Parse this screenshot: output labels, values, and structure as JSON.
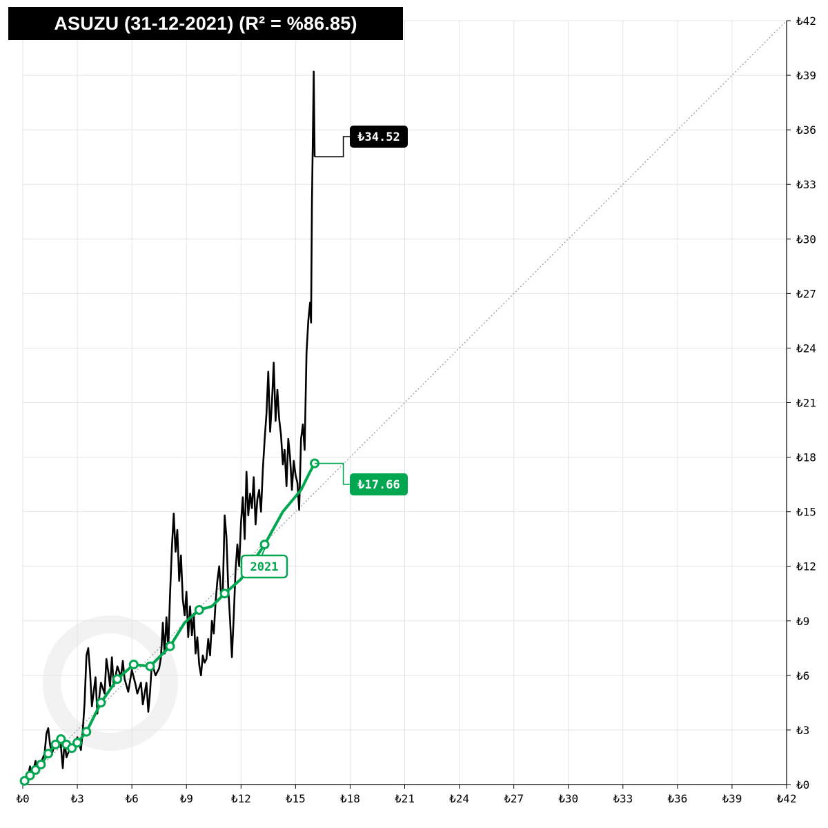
{
  "title": "ASUZU (31-12-2021) (R² = %86.85)",
  "colors": {
    "price": "#000000",
    "trend": "#00a650",
    "grid": "#e4e4e4",
    "diagonal": "#9a9a9a"
  },
  "chart_data": {
    "type": "line",
    "title": "ASUZU (31-12-2021) (R² = %86.85)",
    "xlim": [
      0,
      42
    ],
    "ylim": [
      0,
      42
    ],
    "x_ticks": [
      "₺0",
      "₺3",
      "₺6",
      "₺9",
      "₺12",
      "₺15",
      "₺18",
      "₺21",
      "₺24",
      "₺27",
      "₺30",
      "₺33",
      "₺36",
      "₺39",
      "₺42"
    ],
    "y_ticks": [
      "₺0",
      "₺3",
      "₺6",
      "₺9",
      "₺12",
      "₺15",
      "₺18",
      "₺21",
      "₺24",
      "₺27",
      "₺30",
      "₺33",
      "₺36",
      "₺39",
      "₺42"
    ],
    "grid": true,
    "diagonal_reference": true,
    "series": [
      {
        "color": "#000000",
        "points": [
          [
            0.1,
            0.2
          ],
          [
            0.3,
            0.5
          ],
          [
            0.4,
            1.0
          ],
          [
            0.5,
            0.4
          ],
          [
            0.7,
            1.3
          ],
          [
            0.8,
            0.6
          ],
          [
            1.0,
            1.2
          ],
          [
            1.2,
            1.7
          ],
          [
            1.3,
            2.8
          ],
          [
            1.4,
            3.1
          ],
          [
            1.5,
            2.2
          ],
          [
            1.6,
            1.7
          ],
          [
            1.8,
            2.3
          ],
          [
            2.0,
            2.7
          ],
          [
            2.1,
            2.1
          ],
          [
            2.2,
            0.9
          ],
          [
            2.3,
            2.4
          ],
          [
            2.4,
            1.5
          ],
          [
            2.6,
            2.0
          ],
          [
            2.8,
            1.9
          ],
          [
            3.0,
            2.6
          ],
          [
            3.2,
            1.9
          ],
          [
            3.3,
            3.0
          ],
          [
            3.4,
            4.5
          ],
          [
            3.5,
            7.1
          ],
          [
            3.6,
            7.5
          ],
          [
            3.7,
            6.2
          ],
          [
            3.8,
            4.3
          ],
          [
            4.0,
            5.9
          ],
          [
            4.1,
            3.9
          ],
          [
            4.3,
            5.6
          ],
          [
            4.5,
            5.0
          ],
          [
            4.6,
            6.9
          ],
          [
            4.7,
            6.2
          ],
          [
            4.8,
            5.4
          ],
          [
            4.9,
            7.0
          ],
          [
            5.0,
            5.4
          ],
          [
            5.2,
            6.5
          ],
          [
            5.4,
            5.9
          ],
          [
            5.5,
            6.8
          ],
          [
            5.6,
            5.8
          ],
          [
            5.8,
            5.1
          ],
          [
            6.0,
            6.3
          ],
          [
            6.2,
            5.5
          ],
          [
            6.3,
            5.0
          ],
          [
            6.5,
            5.6
          ],
          [
            6.6,
            4.4
          ],
          [
            6.8,
            5.6
          ],
          [
            6.9,
            4.0
          ],
          [
            7.0,
            5.1
          ],
          [
            7.1,
            6.7
          ],
          [
            7.3,
            6.0
          ],
          [
            7.5,
            6.4
          ],
          [
            7.6,
            7.0
          ],
          [
            7.7,
            8.9
          ],
          [
            7.8,
            7.2
          ],
          [
            7.9,
            9.2
          ],
          [
            8.0,
            7.5
          ],
          [
            8.1,
            10.5
          ],
          [
            8.2,
            13.0
          ],
          [
            8.3,
            14.9
          ],
          [
            8.4,
            12.8
          ],
          [
            8.5,
            14.0
          ],
          [
            8.6,
            11.2
          ],
          [
            8.7,
            12.6
          ],
          [
            8.8,
            10.2
          ],
          [
            8.9,
            9.3
          ],
          [
            9.0,
            10.6
          ],
          [
            9.1,
            8.1
          ],
          [
            9.2,
            9.8
          ],
          [
            9.3,
            8.2
          ],
          [
            9.4,
            9.4
          ],
          [
            9.5,
            7.2
          ],
          [
            9.6,
            8.1
          ],
          [
            9.7,
            6.6
          ],
          [
            9.8,
            6.0
          ],
          [
            9.9,
            7.1
          ],
          [
            10.0,
            6.7
          ],
          [
            10.1,
            6.9
          ],
          [
            10.2,
            8.0
          ],
          [
            10.3,
            7.1
          ],
          [
            10.4,
            9.0
          ],
          [
            10.5,
            8.3
          ],
          [
            10.6,
            10.0
          ],
          [
            10.7,
            11.2
          ],
          [
            10.8,
            12.0
          ],
          [
            10.9,
            10.5
          ],
          [
            11.0,
            10.6
          ],
          [
            11.1,
            14.8
          ],
          [
            11.2,
            13.6
          ],
          [
            11.3,
            10.8
          ],
          [
            11.4,
            9.0
          ],
          [
            11.5,
            7.0
          ],
          [
            11.6,
            9.2
          ],
          [
            11.7,
            11.8
          ],
          [
            11.8,
            13.2
          ],
          [
            11.9,
            12.0
          ],
          [
            12.0,
            14.4
          ],
          [
            12.1,
            15.8
          ],
          [
            12.2,
            13.5
          ],
          [
            12.3,
            17.2
          ],
          [
            12.4,
            14.8
          ],
          [
            12.5,
            16.0
          ],
          [
            12.6,
            15.2
          ],
          [
            12.7,
            16.9
          ],
          [
            12.8,
            14.3
          ],
          [
            12.9,
            15.7
          ],
          [
            13.0,
            16.2
          ],
          [
            13.1,
            15.0
          ],
          [
            13.2,
            17.3
          ],
          [
            13.3,
            19.0
          ],
          [
            13.4,
            20.4
          ],
          [
            13.5,
            22.7
          ],
          [
            13.6,
            19.4
          ],
          [
            13.7,
            21.0
          ],
          [
            13.8,
            23.2
          ],
          [
            13.9,
            20.0
          ],
          [
            14.0,
            21.7
          ],
          [
            14.1,
            20.1
          ],
          [
            14.2,
            19.2
          ],
          [
            14.3,
            17.6
          ],
          [
            14.4,
            18.4
          ],
          [
            14.5,
            16.4
          ],
          [
            14.6,
            19.0
          ],
          [
            14.7,
            18.0
          ],
          [
            14.8,
            16.2
          ],
          [
            14.9,
            17.8
          ],
          [
            15.0,
            17.0
          ],
          [
            15.1,
            16.6
          ],
          [
            15.2,
            15.1
          ],
          [
            15.3,
            19.0
          ],
          [
            15.4,
            19.8
          ],
          [
            15.5,
            18.4
          ],
          [
            15.6,
            23.7
          ],
          [
            15.7,
            25.5
          ],
          [
            15.8,
            26.5
          ],
          [
            15.85,
            25.4
          ],
          [
            15.9,
            32.0
          ],
          [
            16.0,
            39.2
          ],
          [
            16.05,
            34.52
          ]
        ]
      },
      {
        "color": "#00a650",
        "points": [
          [
            0.1,
            0.2
          ],
          [
            0.4,
            0.5
          ],
          [
            0.7,
            0.8
          ],
          [
            1.0,
            1.1
          ],
          [
            1.4,
            1.7
          ],
          [
            1.8,
            2.2
          ],
          [
            2.1,
            2.5
          ],
          [
            2.4,
            2.2
          ],
          [
            2.7,
            2.0
          ],
          [
            3.0,
            2.3
          ],
          [
            3.5,
            2.9
          ],
          [
            4.3,
            4.5
          ],
          [
            5.2,
            5.8
          ],
          [
            6.1,
            6.6
          ],
          [
            7.0,
            6.5
          ],
          [
            8.1,
            7.6
          ],
          [
            8.9,
            8.9
          ],
          [
            9.7,
            9.6
          ],
          [
            10.4,
            9.8
          ],
          [
            11.1,
            10.5
          ],
          [
            12.0,
            11.3
          ],
          [
            13.3,
            13.2
          ],
          [
            14.3,
            15.0
          ],
          [
            15.3,
            16.2
          ],
          [
            15.8,
            17.2
          ],
          [
            16.05,
            17.66
          ]
        ],
        "markers": [
          [
            0.1,
            0.2
          ],
          [
            0.4,
            0.5
          ],
          [
            0.7,
            0.8
          ],
          [
            1.0,
            1.1
          ],
          [
            1.4,
            1.7
          ],
          [
            1.8,
            2.2
          ],
          [
            2.1,
            2.5
          ],
          [
            2.4,
            2.2
          ],
          [
            2.7,
            2.0
          ],
          [
            3.0,
            2.3
          ],
          [
            3.5,
            2.9
          ],
          [
            4.3,
            4.5
          ],
          [
            5.2,
            5.8
          ],
          [
            6.1,
            6.6
          ],
          [
            7.0,
            6.5
          ],
          [
            8.1,
            7.6
          ],
          [
            9.7,
            9.6
          ],
          [
            11.1,
            10.5
          ],
          [
            13.3,
            13.2
          ],
          [
            16.05,
            17.66
          ]
        ]
      }
    ],
    "annotations": [
      {
        "text": "₺34.52",
        "x": 16.05,
        "y": 34.52,
        "style": "dark"
      },
      {
        "text": "₺17.66",
        "x": 16.05,
        "y": 17.66,
        "style": "green"
      },
      {
        "text": "2021",
        "x": 13.3,
        "y": 13.2,
        "style": "green-outline"
      }
    ]
  }
}
